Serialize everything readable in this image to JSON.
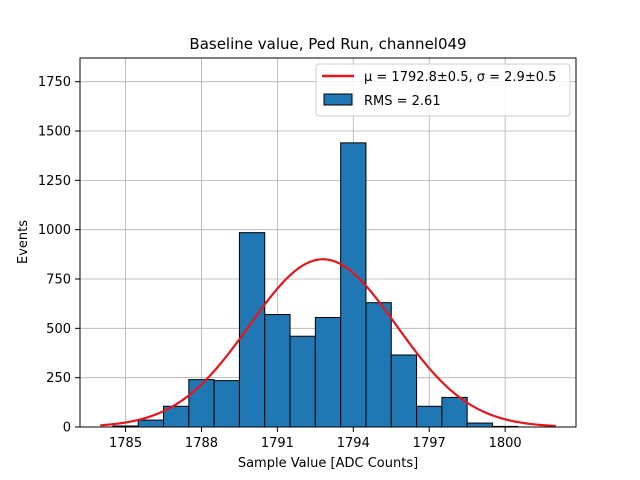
{
  "chart_data": {
    "type": "bar",
    "title": "Baseline value, Ped Run, channel049",
    "xlabel": "Sample Value [ADC Counts]",
    "ylabel": "Events",
    "xlim": [
      1783.2,
      1802.8
    ],
    "ylim": [
      0,
      1870
    ],
    "xticks": [
      1785,
      1788,
      1791,
      1794,
      1797,
      1800
    ],
    "yticks": [
      0,
      250,
      500,
      750,
      1000,
      1250,
      1500,
      1750
    ],
    "grid": true,
    "legend_position": "top-right",
    "bin_width": 1,
    "bins": [
      {
        "x": 1785,
        "count": 5
      },
      {
        "x": 1786,
        "count": 35
      },
      {
        "x": 1787,
        "count": 105
      },
      {
        "x": 1788,
        "count": 240
      },
      {
        "x": 1789,
        "count": 235
      },
      {
        "x": 1790,
        "count": 985
      },
      {
        "x": 1791,
        "count": 570
      },
      {
        "x": 1792,
        "count": 460
      },
      {
        "x": 1793,
        "count": 555
      },
      {
        "x": 1794,
        "count": 1440
      },
      {
        "x": 1795,
        "count": 630
      },
      {
        "x": 1796,
        "count": 365
      },
      {
        "x": 1797,
        "count": 105
      },
      {
        "x": 1798,
        "count": 150
      },
      {
        "x": 1799,
        "count": 20
      },
      {
        "x": 1800,
        "count": 3
      }
    ],
    "fit": {
      "mu": 1792.8,
      "sigma": 2.9,
      "amplitude": 850,
      "x_range": [
        1784,
        1802
      ]
    },
    "legend": {
      "fit_label": "μ = 1792.8±0.5, σ = 2.9±0.5",
      "hist_label": "RMS = 2.61"
    },
    "colors": {
      "bar_fill": "#1f77b4",
      "bar_edge": "#000000",
      "fit_line": "#e8141a",
      "grid": "#b0b0b0"
    }
  }
}
